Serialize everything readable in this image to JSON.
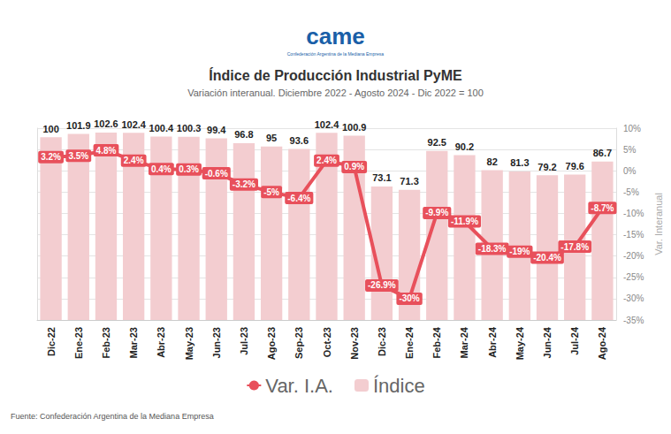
{
  "chart_data": {
    "type": "bar",
    "logo": "came",
    "logo_caption": "Confederación Argentina de la Mediana Empresa",
    "title": "Índice de Producción Industrial PyME",
    "subtitle": "Variación interanual. Diciembre 2022 - Agosto 2024 - Dic 2022 = 100",
    "source": "Fuente: Confederación Argentina de la Mediana Empresa",
    "y2_label": "Var. Interanual",
    "categories": [
      "Dic-22",
      "Ene-23",
      "Feb-23",
      "Mar-23",
      "Abr-23",
      "May-23",
      "Jun-23",
      "Jul-23",
      "Ago-23",
      "Sep-23",
      "Oct-23",
      "Nov-23",
      "Dic-23",
      "Ene-24",
      "Feb-24",
      "Mar-24",
      "Abr-24",
      "May-24",
      "Jun-24",
      "Jul-24",
      "Ago-24"
    ],
    "ylim": [
      0,
      105
    ],
    "y2lim": [
      -35,
      10
    ],
    "y2ticks": [
      {
        "value": -35,
        "label": "-35%"
      },
      {
        "value": -30,
        "label": "-30%"
      },
      {
        "value": -25,
        "label": "-25%"
      },
      {
        "value": -20,
        "label": "-20%"
      },
      {
        "value": -15,
        "label": "-15%"
      },
      {
        "value": -10,
        "label": "-10%"
      },
      {
        "value": -5,
        "label": "-5%"
      },
      {
        "value": 0,
        "label": "0%"
      },
      {
        "value": 5,
        "label": "5%"
      },
      {
        "value": 10,
        "label": "10%"
      }
    ],
    "grid": true,
    "legend": "bottom",
    "data_labels": true,
    "series": [
      {
        "name": "Var. I.A.",
        "type": "line",
        "axis": "y2",
        "color": "#e8505b",
        "marker": "circle",
        "values": [
          3.2,
          3.5,
          4.8,
          2.4,
          0.4,
          0.3,
          -0.6,
          -3.2,
          -5,
          -6.4,
          2.4,
          0.9,
          -26.9,
          -30,
          -9.9,
          -11.9,
          -18.3,
          -19,
          -20.4,
          -17.8,
          -8.7
        ],
        "value_labels": [
          "3.2%",
          "3.5%",
          "4.8%",
          "2.4%",
          "0.4%",
          "0.3%",
          "-0.6%",
          "-3.2%",
          "-5%",
          "-6.4%",
          "2.4%",
          "0.9%",
          "-26.9%",
          "-30%",
          "-9.9%",
          "-11.9%",
          "-18.3%",
          "-19%",
          "-20.4%",
          "-17.8%",
          "-8.7%"
        ]
      },
      {
        "name": "Índice",
        "type": "bar",
        "color": "#f3cdd0",
        "values": [
          100,
          101.9,
          102.6,
          102.4,
          100.4,
          100.3,
          99.4,
          96.8,
          95,
          93.6,
          102.4,
          100.9,
          73.1,
          71.3,
          92.5,
          90.2,
          82,
          81.3,
          79.2,
          79.6,
          86.7
        ]
      }
    ]
  }
}
